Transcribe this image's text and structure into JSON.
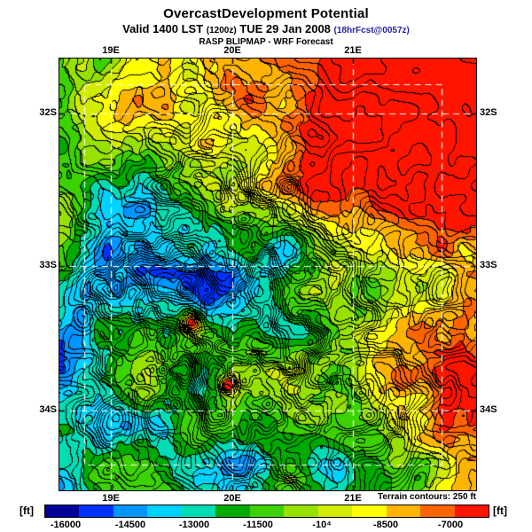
{
  "header": {
    "title": "OvercastDevelopment Potential",
    "valid_prefix": "Valid 1400 LST ",
    "valid_issue": "(1200z)",
    "valid_date": " TUE 29 Jan 2008 ",
    "valid_fcst": "(18hrFcst@0057z)",
    "fcst_color": "#2222aa",
    "model_line": "RASP BLIPMAP - WRF Forecast"
  },
  "map": {
    "x_ticks": [
      "19E",
      "20E",
      "21E"
    ],
    "y_ticks": [
      "32S",
      "33S",
      "34S"
    ],
    "border_color": "#000000",
    "grid_color": "#ffffff",
    "contour_color": "#000000"
  },
  "colorbar": {
    "unit_left": "[ft]",
    "unit_right": "[ft]",
    "labels": [
      "-16000",
      "-14500",
      "-13000",
      "-11500",
      "-10⁴",
      "-8500",
      "-7000"
    ],
    "colors": [
      "#000096",
      "#0032ff",
      "#0096ff",
      "#00d2ff",
      "#00dcb4",
      "#00aa00",
      "#3cd200",
      "#96e100",
      "#d2eb00",
      "#ffff00",
      "#ffb400",
      "#ff6400",
      "#ff1400"
    ],
    "note": "Terrain contours: 250 ft"
  }
}
